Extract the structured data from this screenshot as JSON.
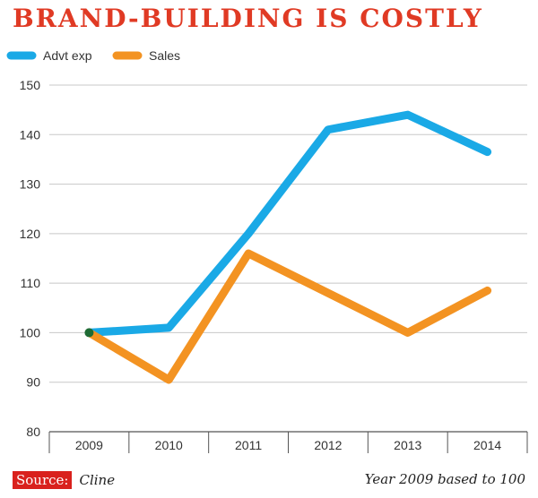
{
  "title": "BRAND-BUILDING IS COSTLY",
  "footer": {
    "source_label": "Source:",
    "source_name": "Cline",
    "note": "Year 2009 based to 100"
  },
  "chart_data": {
    "type": "line",
    "title": "BRAND-BUILDING IS COSTLY",
    "xlabel": "",
    "ylabel": "",
    "categories": [
      "2009",
      "2010",
      "2011",
      "2012",
      "2013",
      "2014"
    ],
    "ylim": [
      80,
      150
    ],
    "yticks": [
      80,
      90,
      100,
      110,
      120,
      130,
      140,
      150
    ],
    "grid": true,
    "legend_position": "top-left",
    "series": [
      {
        "name": "Advt exp",
        "color": "#1aa9e6",
        "values": [
          100,
          101,
          120,
          141,
          144,
          136.5
        ]
      },
      {
        "name": "Sales",
        "color": "#f39322",
        "values": [
          100,
          90.5,
          116,
          108,
          100,
          108.5
        ]
      }
    ],
    "start_marker_color": "#1f6b34"
  }
}
